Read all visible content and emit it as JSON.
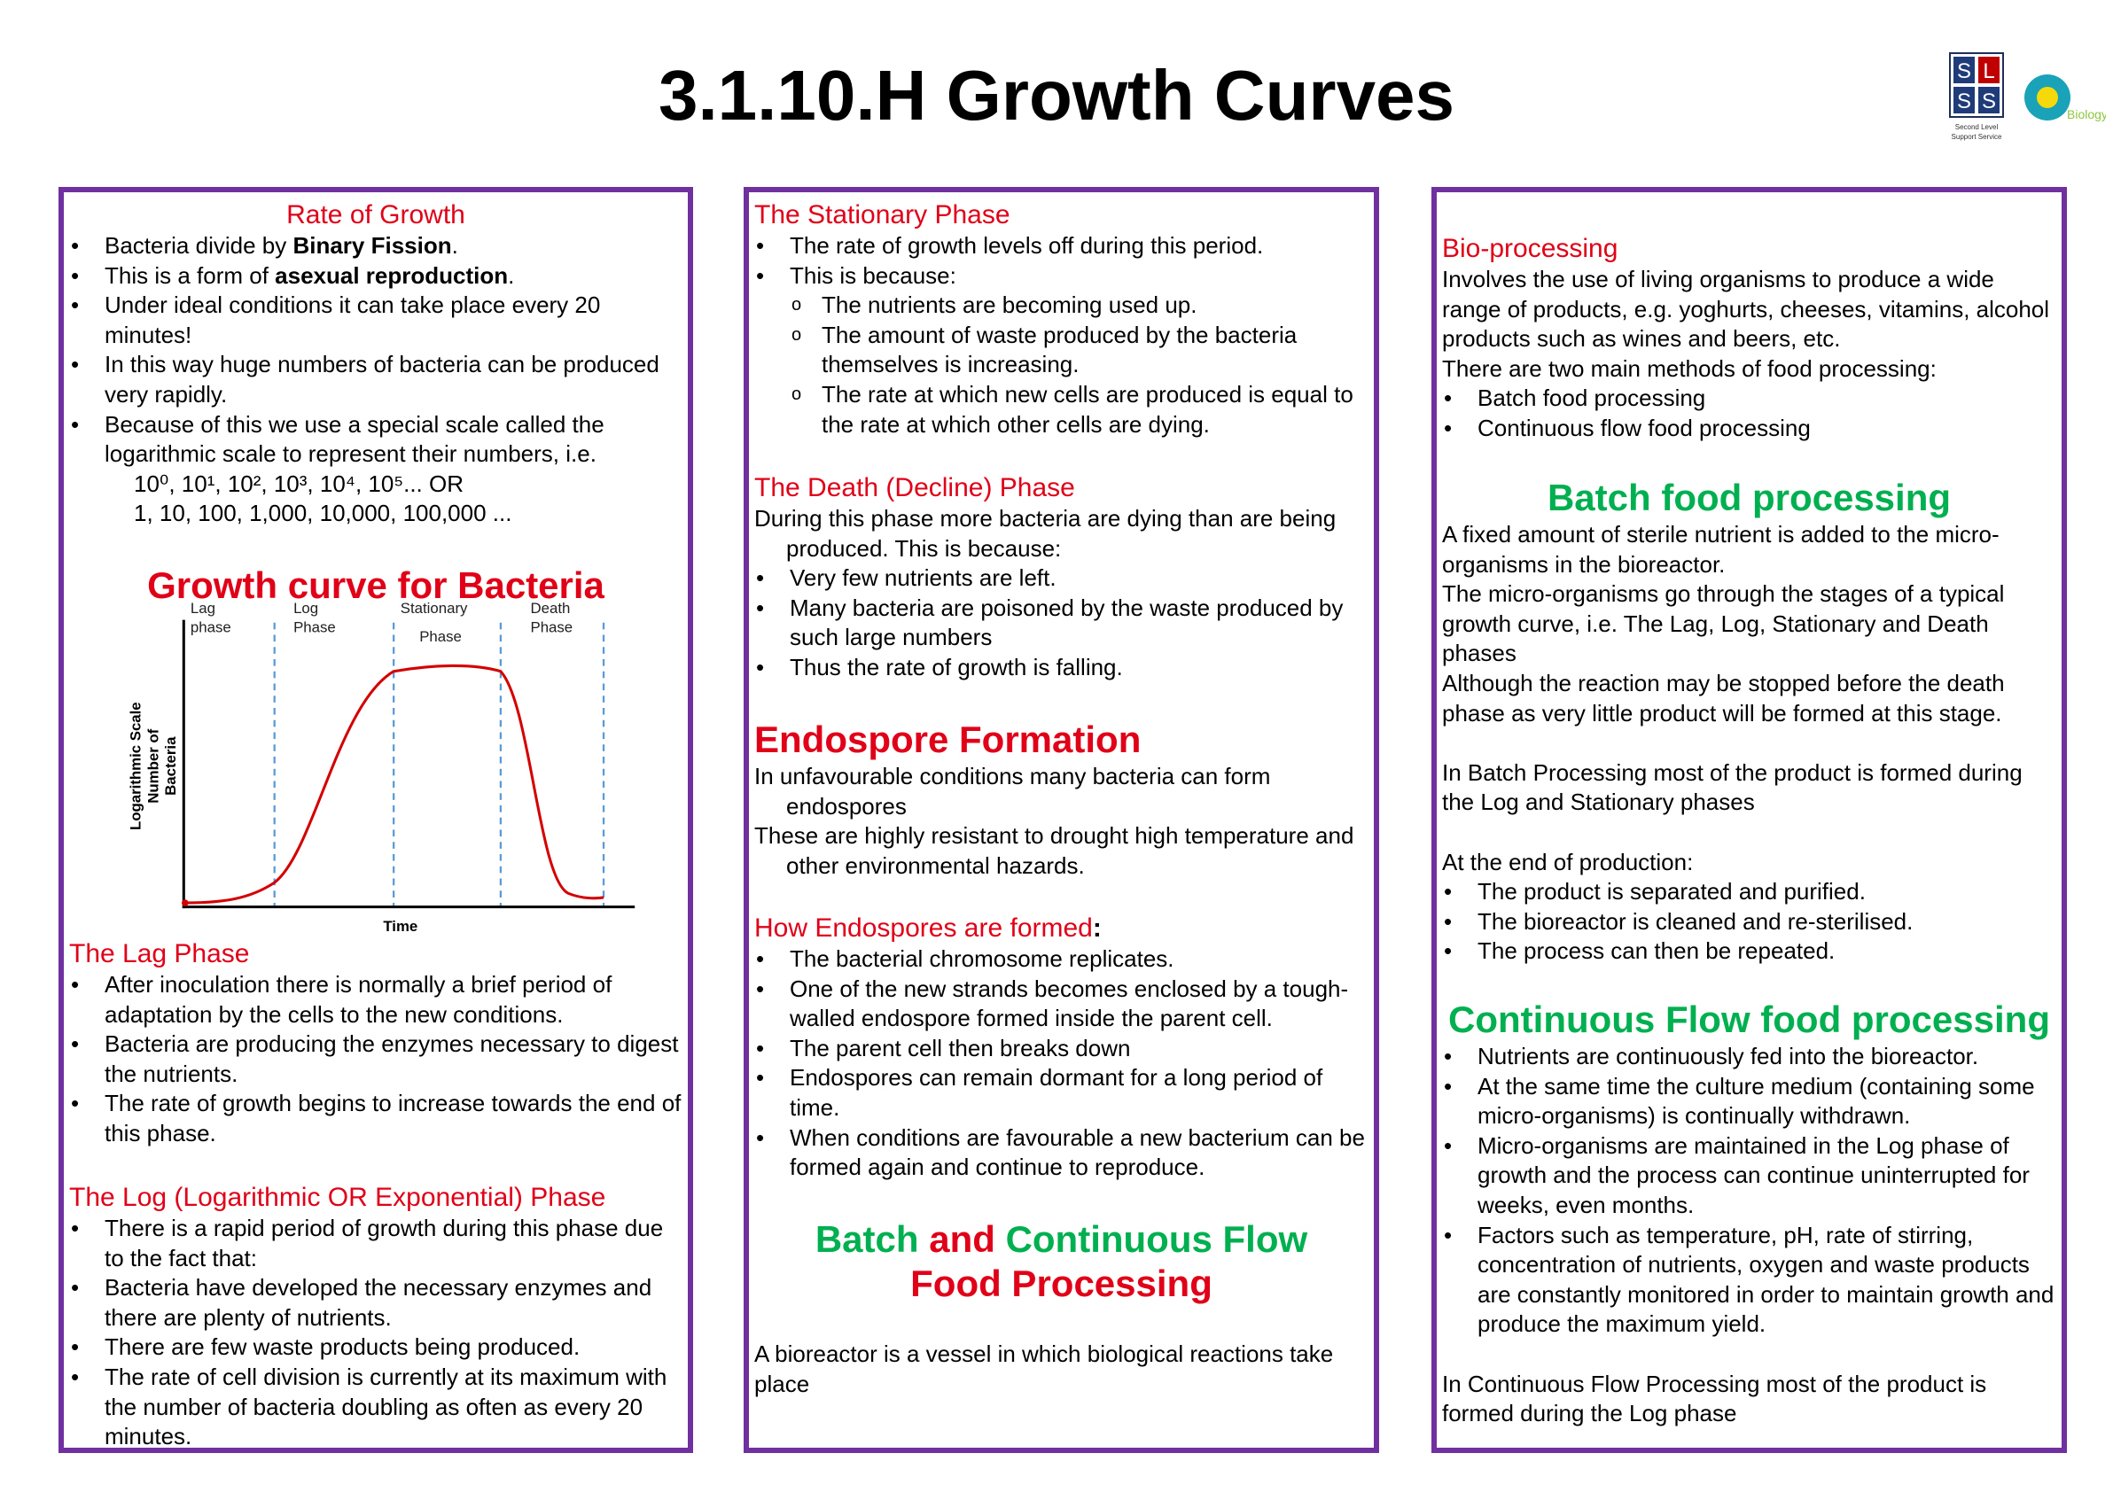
{
  "header": {
    "title": "3.1.10.H Growth Curves",
    "logo": {
      "letters": [
        "S",
        "L",
        "S",
        "S"
      ],
      "caption": [
        "Second Level",
        "Support Service"
      ],
      "subject": "Biology"
    }
  },
  "column1": {
    "rate_of_growth": {
      "heading": "Rate of Growth",
      "bullets": [
        [
          "Bacteria divide by ",
          "Binary Fission",
          "."
        ],
        [
          "This is a form of ",
          "asexual reproduction",
          "."
        ],
        "Under ideal conditions it can take place every 20 minutes!",
        "In this way huge numbers of bacteria can be produced very rapidly.",
        "Because of this we use a special scale called the logarithmic scale to represent their numbers, i.e."
      ],
      "scale_examples": [
        "10⁰, 10¹, 10², 10³, 10⁴, 10⁵... OR",
        "1, 10, 100, 1,000, 10,000, 100,000 ..."
      ]
    },
    "growth_curve": {
      "title": "Growth curve for Bacteria",
      "phases": [
        [
          "Lag",
          "phase"
        ],
        [
          "Log",
          "Phase"
        ],
        [
          "Stationary",
          "Phase"
        ],
        [
          "Death",
          "Phase"
        ]
      ],
      "y_label": [
        "Logarithmic Scale",
        "Number of",
        "Bacteria"
      ],
      "x_label": "Time"
    },
    "lag_phase": {
      "heading": "The Lag Phase",
      "bullets": [
        "After inoculation there is normally a brief period of adaptation by the cells to the new conditions.",
        "Bacteria are producing the enzymes necessary to digest the nutrients.",
        "The rate of growth begins to increase towards the end of this phase."
      ]
    },
    "log_phase": {
      "heading": "The Log (Logarithmic OR Exponential) Phase",
      "bullets": [
        "There is a rapid period of growth during this phase due to the fact that:",
        "Bacteria have developed the necessary enzymes and there are plenty of nutrients.",
        "There are few waste products being produced.",
        "The rate of cell division is currently at its maximum with the number of bacteria doubling as often as every 20 minutes."
      ]
    }
  },
  "column2": {
    "stationary_phase": {
      "heading": "The Stationary Phase",
      "bullets": [
        "The rate of growth levels off during this period.",
        "This is because:"
      ],
      "sub_bullets": [
        "The nutrients are becoming used up.",
        "The amount of waste produced by the bacteria themselves is increasing.",
        "The rate at which new cells are produced is equal to the rate at which other cells are dying."
      ]
    },
    "death_phase": {
      "heading": "The Death (Decline) Phase",
      "intro": "During this phase more bacteria are dying than are being produced. This is because:",
      "bullets": [
        "Very few nutrients are left.",
        "Many bacteria are poisoned by the waste produced by such large numbers",
        "Thus the rate of growth is falling."
      ]
    },
    "endospore_formation": {
      "heading": "Endospore Formation",
      "paragraphs": [
        "In unfavourable conditions many bacteria can form endospores",
        "These are highly resistant to drought high temperature and other environmental hazards."
      ]
    },
    "how_endospores_formed": {
      "heading": "How Endospores are formed",
      "heading_punctuation": ":",
      "bullets": [
        "The bacterial chromosome replicates.",
        "One of the new strands becomes enclosed by a tough-walled endospore formed inside the parent cell.",
        "The parent cell then breaks down",
        "Endospores can remain dormant for a long period of time.",
        "When conditions are favourable a new bacterium can be formed again and continue to reproduce."
      ]
    },
    "batch_and_continuous": {
      "heading": [
        "Batch",
        "and",
        "Continuous Flow",
        "Food Processing"
      ],
      "text": "A bioreactor is a vessel in which biological reactions take place"
    }
  },
  "column3": {
    "bio_processing": {
      "heading": "Bio-processing",
      "paragraphs": [
        "Involves the use of living organisms to produce a wide range of products, e.g. yoghurts, cheeses, vitamins, alcohol products such as wines and beers, etc.",
        "There are two main methods of food processing:"
      ],
      "bullets": [
        "Batch food processing",
        "Continuous flow food processing"
      ]
    },
    "batch_food_processing": {
      "heading": "Batch food processing",
      "paragraphs": [
        "A fixed amount of sterile nutrient is added to the micro-organisms in the bioreactor.",
        "The micro-organisms go through the stages of a typical growth curve,  i.e. The Lag, Log, Stationary and Death phases",
        "Although the reaction may be stopped before the death phase as very little product will be formed at this stage."
      ],
      "result": "In Batch Processing most of the product is formed during the Log and Stationary phases",
      "end_intro": "At the end of production:",
      "bullets": [
        "The product is separated and purified.",
        "The bioreactor is cleaned and re-sterilised.",
        "The process can then be repeated."
      ]
    },
    "continuous_flow_processing": {
      "heading": "Continuous Flow food processing",
      "bullets": [
        "Nutrients are continuously fed into the bioreactor.",
        "At the same time the culture medium (containing some micro-organisms) is continually withdrawn.",
        "Micro-organisms are maintained in the Log phase of growth and the process can continue uninterrupted for weeks, even months.",
        "Factors such as temperature, pH, rate of stirring, concentration of nutrients, oxygen and waste products are constantly monitored in order to maintain growth and produce the maximum yield."
      ],
      "closing": "In Continuous Flow Processing most of the product is formed during the Log phase"
    }
  }
}
